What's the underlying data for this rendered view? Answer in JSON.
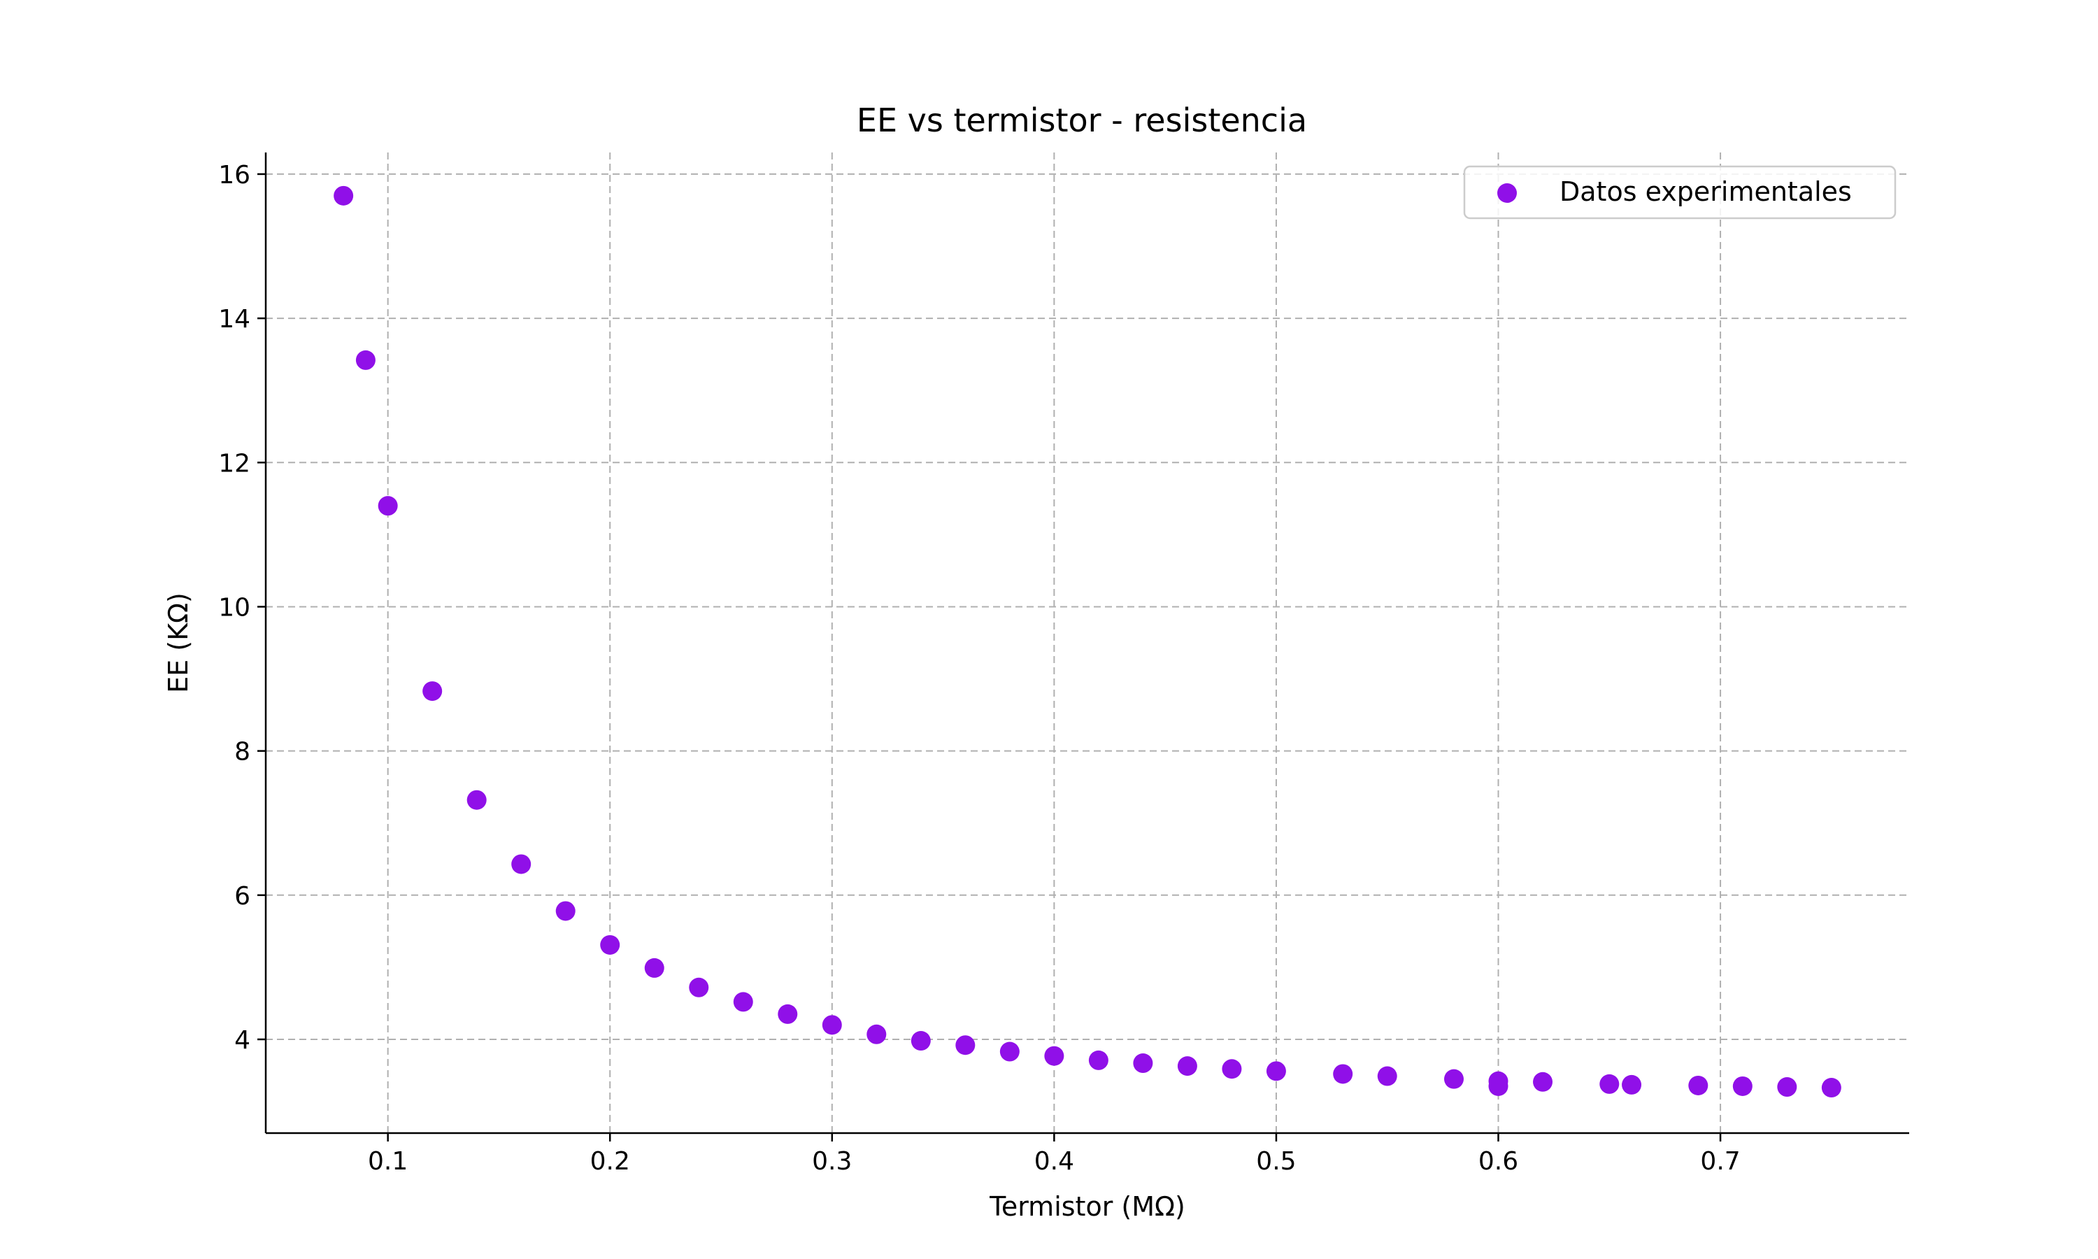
{
  "chart_data": {
    "type": "scatter",
    "title": "EE vs termistor - resistencia",
    "xlabel": "Termistor (MΩ)",
    "ylabel": "EE (KΩ)",
    "xlim": [
      0.045,
      0.785
    ],
    "ylim": [
      2.7,
      16.3
    ],
    "xticks": [
      0.1,
      0.2,
      0.3,
      0.4,
      0.5,
      0.6,
      0.7
    ],
    "yticks": [
      4,
      6,
      8,
      10,
      12,
      14,
      16
    ],
    "grid": true,
    "legend_position": "top-right",
    "series": [
      {
        "name": "Datos experimentales",
        "color": "#9010e8",
        "x": [
          0.08,
          0.09,
          0.1,
          0.12,
          0.14,
          0.16,
          0.18,
          0.2,
          0.22,
          0.24,
          0.26,
          0.28,
          0.3,
          0.32,
          0.34,
          0.36,
          0.38,
          0.4,
          0.42,
          0.44,
          0.46,
          0.48,
          0.5,
          0.53,
          0.55,
          0.58,
          0.6,
          0.6,
          0.62,
          0.65,
          0.66,
          0.69,
          0.71,
          0.73,
          0.75
        ],
        "y": [
          15.7,
          13.42,
          11.4,
          8.83,
          7.32,
          6.43,
          5.78,
          5.31,
          4.99,
          4.72,
          4.52,
          4.35,
          4.2,
          4.07,
          3.98,
          3.92,
          3.83,
          3.77,
          3.71,
          3.67,
          3.63,
          3.59,
          3.56,
          3.52,
          3.49,
          3.45,
          3.42,
          3.35,
          3.41,
          3.38,
          3.37,
          3.36,
          3.35,
          3.34,
          3.33
        ]
      }
    ]
  }
}
